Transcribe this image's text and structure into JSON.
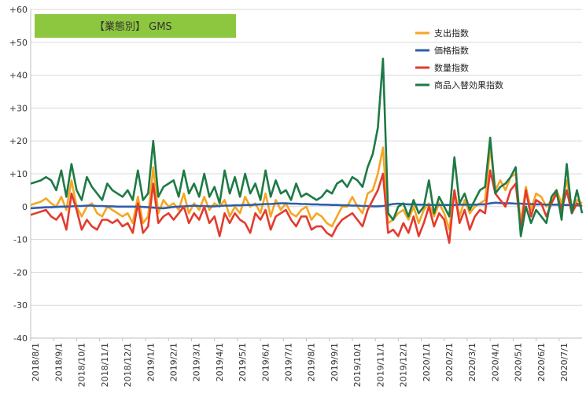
{
  "chart_data": {
    "type": "line",
    "title": "【業態別】 GMS",
    "title_box_color": "#8DC73F",
    "yticks": [
      "+60",
      "+50",
      "+40",
      "+30",
      "+20",
      "+10",
      "0",
      "-10",
      "-20",
      "-30",
      "-40"
    ],
    "ylim": [
      -40,
      60
    ],
    "xtick_labels": [
      "2018/8/1",
      "2018/9/1",
      "2018/10/1",
      "2018/11/1",
      "2018/12/1",
      "2019/1/1",
      "2019/2/1",
      "2019/3/1",
      "2019/4/1",
      "2019/5/1",
      "2019/6/1",
      "2019/7/1",
      "2019/8/1",
      "2019/9/1",
      "2019/10/1",
      "2019/11/1",
      "2019/12/1",
      "2020/1/1",
      "2020/2/1",
      "2020/3/1",
      "2020/4/1",
      "2020/5/1",
      "2020/6/1",
      "2020/7/1"
    ],
    "legend_position": "top-right",
    "grid": true,
    "series": [
      {
        "name": "支出指数",
        "color": "#F5A623",
        "values": [
          0.5,
          1,
          1.5,
          2.5,
          1,
          0,
          3,
          -1,
          8,
          0,
          -3,
          0,
          1,
          -2,
          -3,
          0,
          -1,
          -2,
          -3,
          -2,
          -5,
          3,
          -5,
          -3,
          12,
          -2,
          2,
          0,
          1,
          -1,
          4,
          -2,
          1,
          -1,
          3,
          -1,
          1,
          0,
          2,
          -3,
          0,
          -2,
          3,
          0,
          1,
          -2,
          4,
          -3,
          2,
          -1,
          1,
          -2,
          -3,
          -1,
          0,
          -4,
          -2,
          -3,
          -5,
          -6,
          -3,
          0,
          0,
          3,
          0,
          -2,
          4,
          5,
          10,
          18,
          -5,
          -4,
          -2,
          -1,
          -4,
          0,
          -5,
          -1,
          1,
          -3,
          1,
          -2,
          -7,
          5,
          -3,
          2,
          -2,
          0,
          1,
          2,
          18,
          5,
          8,
          5,
          9,
          10,
          -5,
          6,
          -1,
          4,
          3,
          0,
          2,
          5,
          1,
          8,
          0,
          2,
          1
        ],
        "values_note": ""
      },
      {
        "name": "価格指数",
        "color": "#2E5EAA",
        "values": [
          -0.5,
          -0.4,
          -0.3,
          -0.2,
          -0.2,
          -0.1,
          0,
          0,
          0.1,
          0.2,
          0.2,
          0.3,
          0.3,
          0.2,
          0.2,
          0.1,
          0.1,
          0,
          0,
          0,
          0,
          0,
          -0.1,
          -0.2,
          -0.3,
          -0.4,
          -0.5,
          -0.3,
          -0.1,
          0,
          0.1,
          0.2,
          0.3,
          0.2,
          0.2,
          0.1,
          0.1,
          0.2,
          0.3,
          0.3,
          0.4,
          0.4,
          0.5,
          0.5,
          0.6,
          0.7,
          0.8,
          0.8,
          0.9,
          1,
          1,
          0.9,
          0.9,
          0.8,
          0.8,
          0.7,
          0.7,
          0.6,
          0.6,
          0.5,
          0.5,
          0.4,
          0.4,
          0.3,
          0.3,
          0.2,
          0.2,
          0.1,
          0.1,
          0.2,
          0.5,
          0.8,
          0.9,
          0.8,
          0.7,
          0.7,
          0.6,
          0.6,
          0.5,
          0.5,
          0.5,
          0.5,
          0.5,
          0.5,
          0.6,
          0.6,
          0.6,
          0.6,
          0.7,
          0.7,
          1,
          1.2,
          1.1,
          1,
          1,
          0.9,
          0.9,
          0.8,
          0.8,
          0.7,
          0.7,
          0.6,
          0.6,
          0.6,
          0.5,
          0.5,
          0.5,
          0.4,
          0.3
        ]
      },
      {
        "name": "数量指数",
        "color": "#E23B2E",
        "values": [
          -2.5,
          -2,
          -1.5,
          -1,
          -3,
          -4,
          -2,
          -7,
          4,
          -1,
          -7,
          -4,
          -6,
          -7,
          -4,
          -4,
          -5,
          -4,
          -6,
          -5,
          -8,
          1,
          -8,
          -6,
          7,
          -5,
          -3,
          -2,
          -4,
          -2,
          0,
          -5,
          -2,
          -4,
          0,
          -5,
          -3,
          -9,
          -2,
          -5,
          -2,
          -4,
          -5,
          -8,
          -2,
          -4,
          -1,
          -7,
          -3,
          -2,
          -1,
          -4,
          -6,
          -3,
          -3,
          -7,
          -6,
          -6,
          -8,
          -9,
          -6,
          -4,
          -3,
          -2,
          -4,
          -6,
          -1,
          2,
          5,
          10,
          -8,
          -7,
          -9,
          -5,
          -8,
          -3,
          -9,
          -5,
          0,
          -6,
          -2,
          -4,
          -11,
          5,
          -5,
          -1,
          -7,
          -3,
          -1,
          -2,
          11,
          4,
          2,
          0,
          5,
          7,
          -7,
          5,
          -3,
          2,
          1,
          -3,
          1,
          4,
          -1,
          5,
          -2,
          1,
          0
        ]
      },
      {
        "name": "商品入替効果指数",
        "color": "#1E7A45",
        "values": [
          7,
          7.5,
          8,
          9,
          8,
          5,
          11,
          3,
          13,
          5,
          2,
          9,
          6,
          4,
          2,
          7,
          5,
          4,
          3,
          5,
          2,
          11,
          2,
          4,
          20,
          3,
          6,
          7,
          8,
          3,
          11,
          4,
          7,
          3,
          10,
          3,
          6,
          1,
          11,
          4,
          9,
          3,
          10,
          4,
          7,
          2,
          11,
          3,
          8,
          4,
          5,
          2,
          7,
          3,
          4,
          3,
          2,
          3,
          5,
          4,
          7,
          8,
          6,
          9,
          8,
          6,
          12,
          16,
          24,
          45,
          -2,
          -4,
          0,
          1,
          -3,
          2,
          -2,
          0,
          8,
          -2,
          3,
          0,
          -3,
          15,
          1,
          4,
          -1,
          2,
          5,
          6,
          21,
          4,
          6,
          7,
          9,
          12,
          -9,
          0,
          -5,
          -1,
          -3,
          -5,
          3,
          5,
          -4,
          13,
          -2,
          5,
          -2
        ]
      }
    ]
  }
}
